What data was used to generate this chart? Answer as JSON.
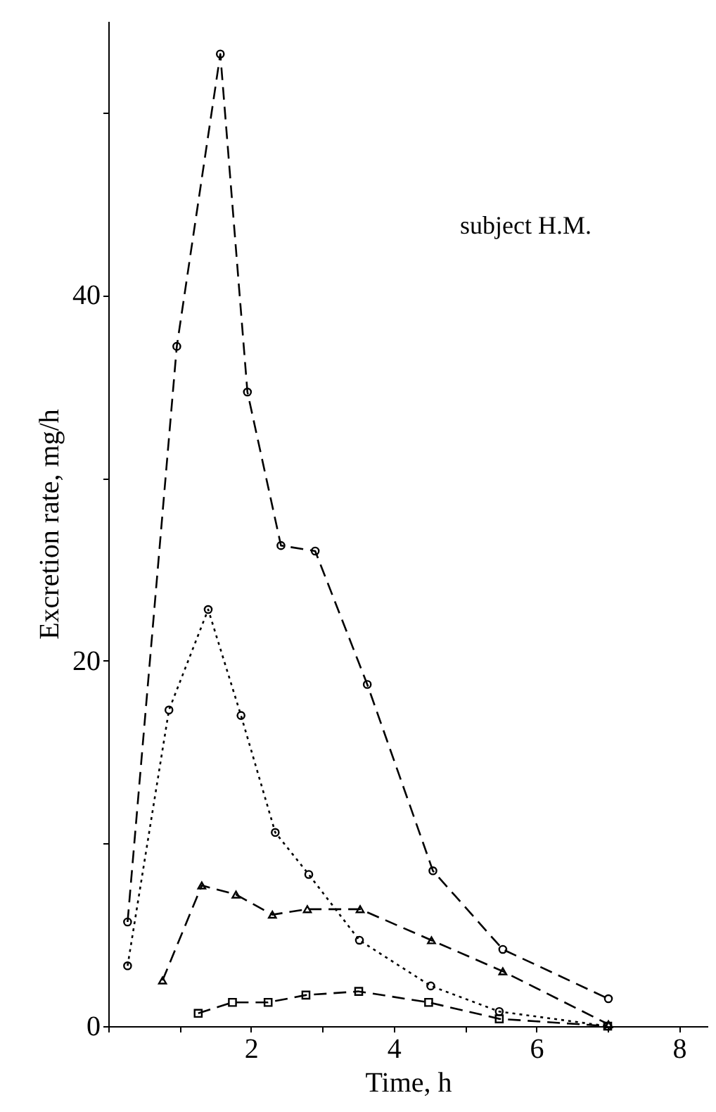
{
  "chart_data": {
    "type": "line",
    "xlabel": "Time, h",
    "ylabel": "Excretion rate, mg/h",
    "annotations": [
      "subject H.M."
    ],
    "xlim": [
      0,
      8.4
    ],
    "xticks": [
      {
        "value": 0,
        "label": null
      },
      {
        "value": 1,
        "label": null
      },
      2,
      {
        "value": 3,
        "label": null
      },
      4,
      {
        "value": 5,
        "label": null
      },
      6,
      {
        "value": 7,
        "label": null
      },
      8
    ],
    "ylim": [
      0,
      55
    ],
    "yticks": [
      0,
      {
        "value": 10,
        "label": null
      },
      20,
      {
        "value": 30,
        "label": null
      },
      40,
      {
        "value": 50,
        "label": null
      }
    ],
    "grid": false,
    "series": [
      {
        "color": "#000000",
        "marker": "circle",
        "line_style": "dashed",
        "x": [
          0.27,
          0.96,
          1.57,
          1.95,
          2.42,
          2.9,
          3.63,
          4.55,
          5.53,
          7.01
        ],
        "values": [
          5.7,
          37.2,
          53.2,
          34.7,
          26.3,
          26.0,
          18.7,
          8.5,
          4.2,
          1.5
        ]
      },
      {
        "color": "#000000",
        "marker": "circle",
        "line_style": "dotted",
        "x": [
          0.27,
          0.85,
          1.4,
          1.86,
          2.34,
          2.81,
          3.52,
          4.52,
          5.48,
          7.0
        ],
        "values": [
          3.3,
          17.3,
          22.8,
          17.0,
          10.6,
          8.3,
          4.7,
          2.2,
          0.8,
          0.0
        ]
      },
      {
        "color": "#000000",
        "marker": "triangle",
        "line_style": "dashed",
        "x": [
          0.76,
          1.31,
          1.79,
          2.3,
          2.79,
          3.53,
          4.53,
          5.53,
          7.01
        ],
        "values": [
          2.5,
          7.7,
          7.2,
          6.1,
          6.4,
          6.4,
          4.7,
          3.0,
          0.1
        ]
      },
      {
        "color": "#000000",
        "marker": "square",
        "line_style": "dashed",
        "x": [
          1.26,
          1.74,
          2.24,
          2.77,
          3.51,
          4.49,
          5.48,
          7.0
        ],
        "values": [
          0.7,
          1.3,
          1.3,
          1.7,
          1.9,
          1.3,
          0.4,
          0.0
        ]
      }
    ]
  }
}
